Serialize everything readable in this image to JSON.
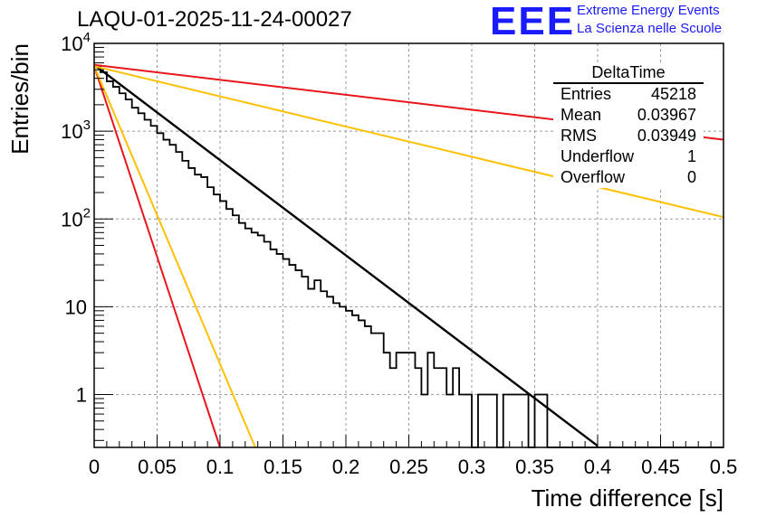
{
  "header": {
    "title": "LAQU-01-2025-11-24-00027",
    "logo_text": "EEE",
    "logo_line1": "Extreme Energy Events",
    "logo_line2": "La Scienza nelle Scuole"
  },
  "stats": {
    "title": "DeltaTime",
    "rows": [
      {
        "label": "Entries",
        "value": "45218"
      },
      {
        "label": "Mean",
        "value": "0.03967"
      },
      {
        "label": "RMS",
        "value": "0.03949"
      },
      {
        "label": "Underflow",
        "value": "1"
      },
      {
        "label": "Overflow",
        "value": "0"
      }
    ]
  },
  "colors": {
    "histogram": "#000000",
    "fit": "#000000",
    "red": "#e8151b",
    "orange": "#ffc000",
    "grid": "#9a9a9a"
  },
  "chart_data": {
    "type": "histogram-logy",
    "title": "LAQU-01-2025-11-24-00027",
    "xlabel": "Time difference [s]",
    "ylabel": "Entries/bin",
    "xlim": [
      0,
      0.5
    ],
    "ylim": [
      0.25,
      10000
    ],
    "log_y": true,
    "grid": true,
    "x_ticks": [
      {
        "v": 0,
        "label": "0"
      },
      {
        "v": 0.05,
        "label": "0.05"
      },
      {
        "v": 0.1,
        "label": "0.1"
      },
      {
        "v": 0.15,
        "label": "0.15"
      },
      {
        "v": 0.2,
        "label": "0.2"
      },
      {
        "v": 0.25,
        "label": "0.25"
      },
      {
        "v": 0.3,
        "label": "0.3"
      },
      {
        "v": 0.35,
        "label": "0.35"
      },
      {
        "v": 0.4,
        "label": "0.4"
      },
      {
        "v": 0.45,
        "label": "0.45"
      },
      {
        "v": 0.5,
        "label": "0.5"
      }
    ],
    "y_ticks": [
      {
        "v": 1,
        "base": "1",
        "exp": ""
      },
      {
        "v": 10,
        "base": "10",
        "exp": ""
      },
      {
        "v": 100,
        "base": "10",
        "exp": "2"
      },
      {
        "v": 1000,
        "base": "10",
        "exp": "3"
      },
      {
        "v": 10000,
        "base": "10",
        "exp": "4"
      }
    ],
    "histogram": {
      "bin_width": 0.005,
      "start": 0,
      "counts": [
        5500,
        4700,
        3700,
        3200,
        2700,
        2300,
        1850,
        1600,
        1350,
        1150,
        950,
        800,
        700,
        580,
        460,
        380,
        320,
        300,
        230,
        190,
        160,
        130,
        110,
        90,
        78,
        70,
        65,
        55,
        45,
        40,
        35,
        30,
        26,
        22,
        16,
        20,
        15,
        13,
        11,
        10,
        9,
        8,
        7,
        6,
        5,
        5,
        3,
        2,
        3,
        3,
        3,
        2,
        1,
        3,
        2,
        2,
        1,
        2,
        1,
        1,
        0,
        1,
        1,
        1,
        0,
        1,
        1,
        1,
        1,
        0,
        1,
        1,
        0,
        0,
        0,
        0,
        0,
        0,
        0,
        0,
        0,
        0,
        0,
        0,
        0,
        0,
        0,
        0,
        0,
        0,
        0,
        0,
        0,
        0,
        0,
        0,
        0,
        0,
        0,
        0
      ]
    },
    "curves": [
      {
        "name": "fit",
        "color": "#000000",
        "width": 2.4,
        "y0": 5700,
        "x1": 0.4,
        "y1": 0.26
      },
      {
        "name": "red-slow",
        "color": "#e8151b",
        "width": 2,
        "y0": 5700,
        "x1": 0.5,
        "y1": 800
      },
      {
        "name": "orange-slow",
        "color": "#ffc000",
        "width": 2,
        "y0": 5500,
        "x1": 0.5,
        "y1": 105
      },
      {
        "name": "red-fast",
        "color": "#e8151b",
        "width": 2,
        "y0": 5500,
        "x1": 0.1,
        "y1": 0.25
      },
      {
        "name": "orange-fast",
        "color": "#ffc000",
        "width": 2,
        "y0": 5500,
        "x1": 0.128,
        "y1": 0.25
      }
    ]
  }
}
